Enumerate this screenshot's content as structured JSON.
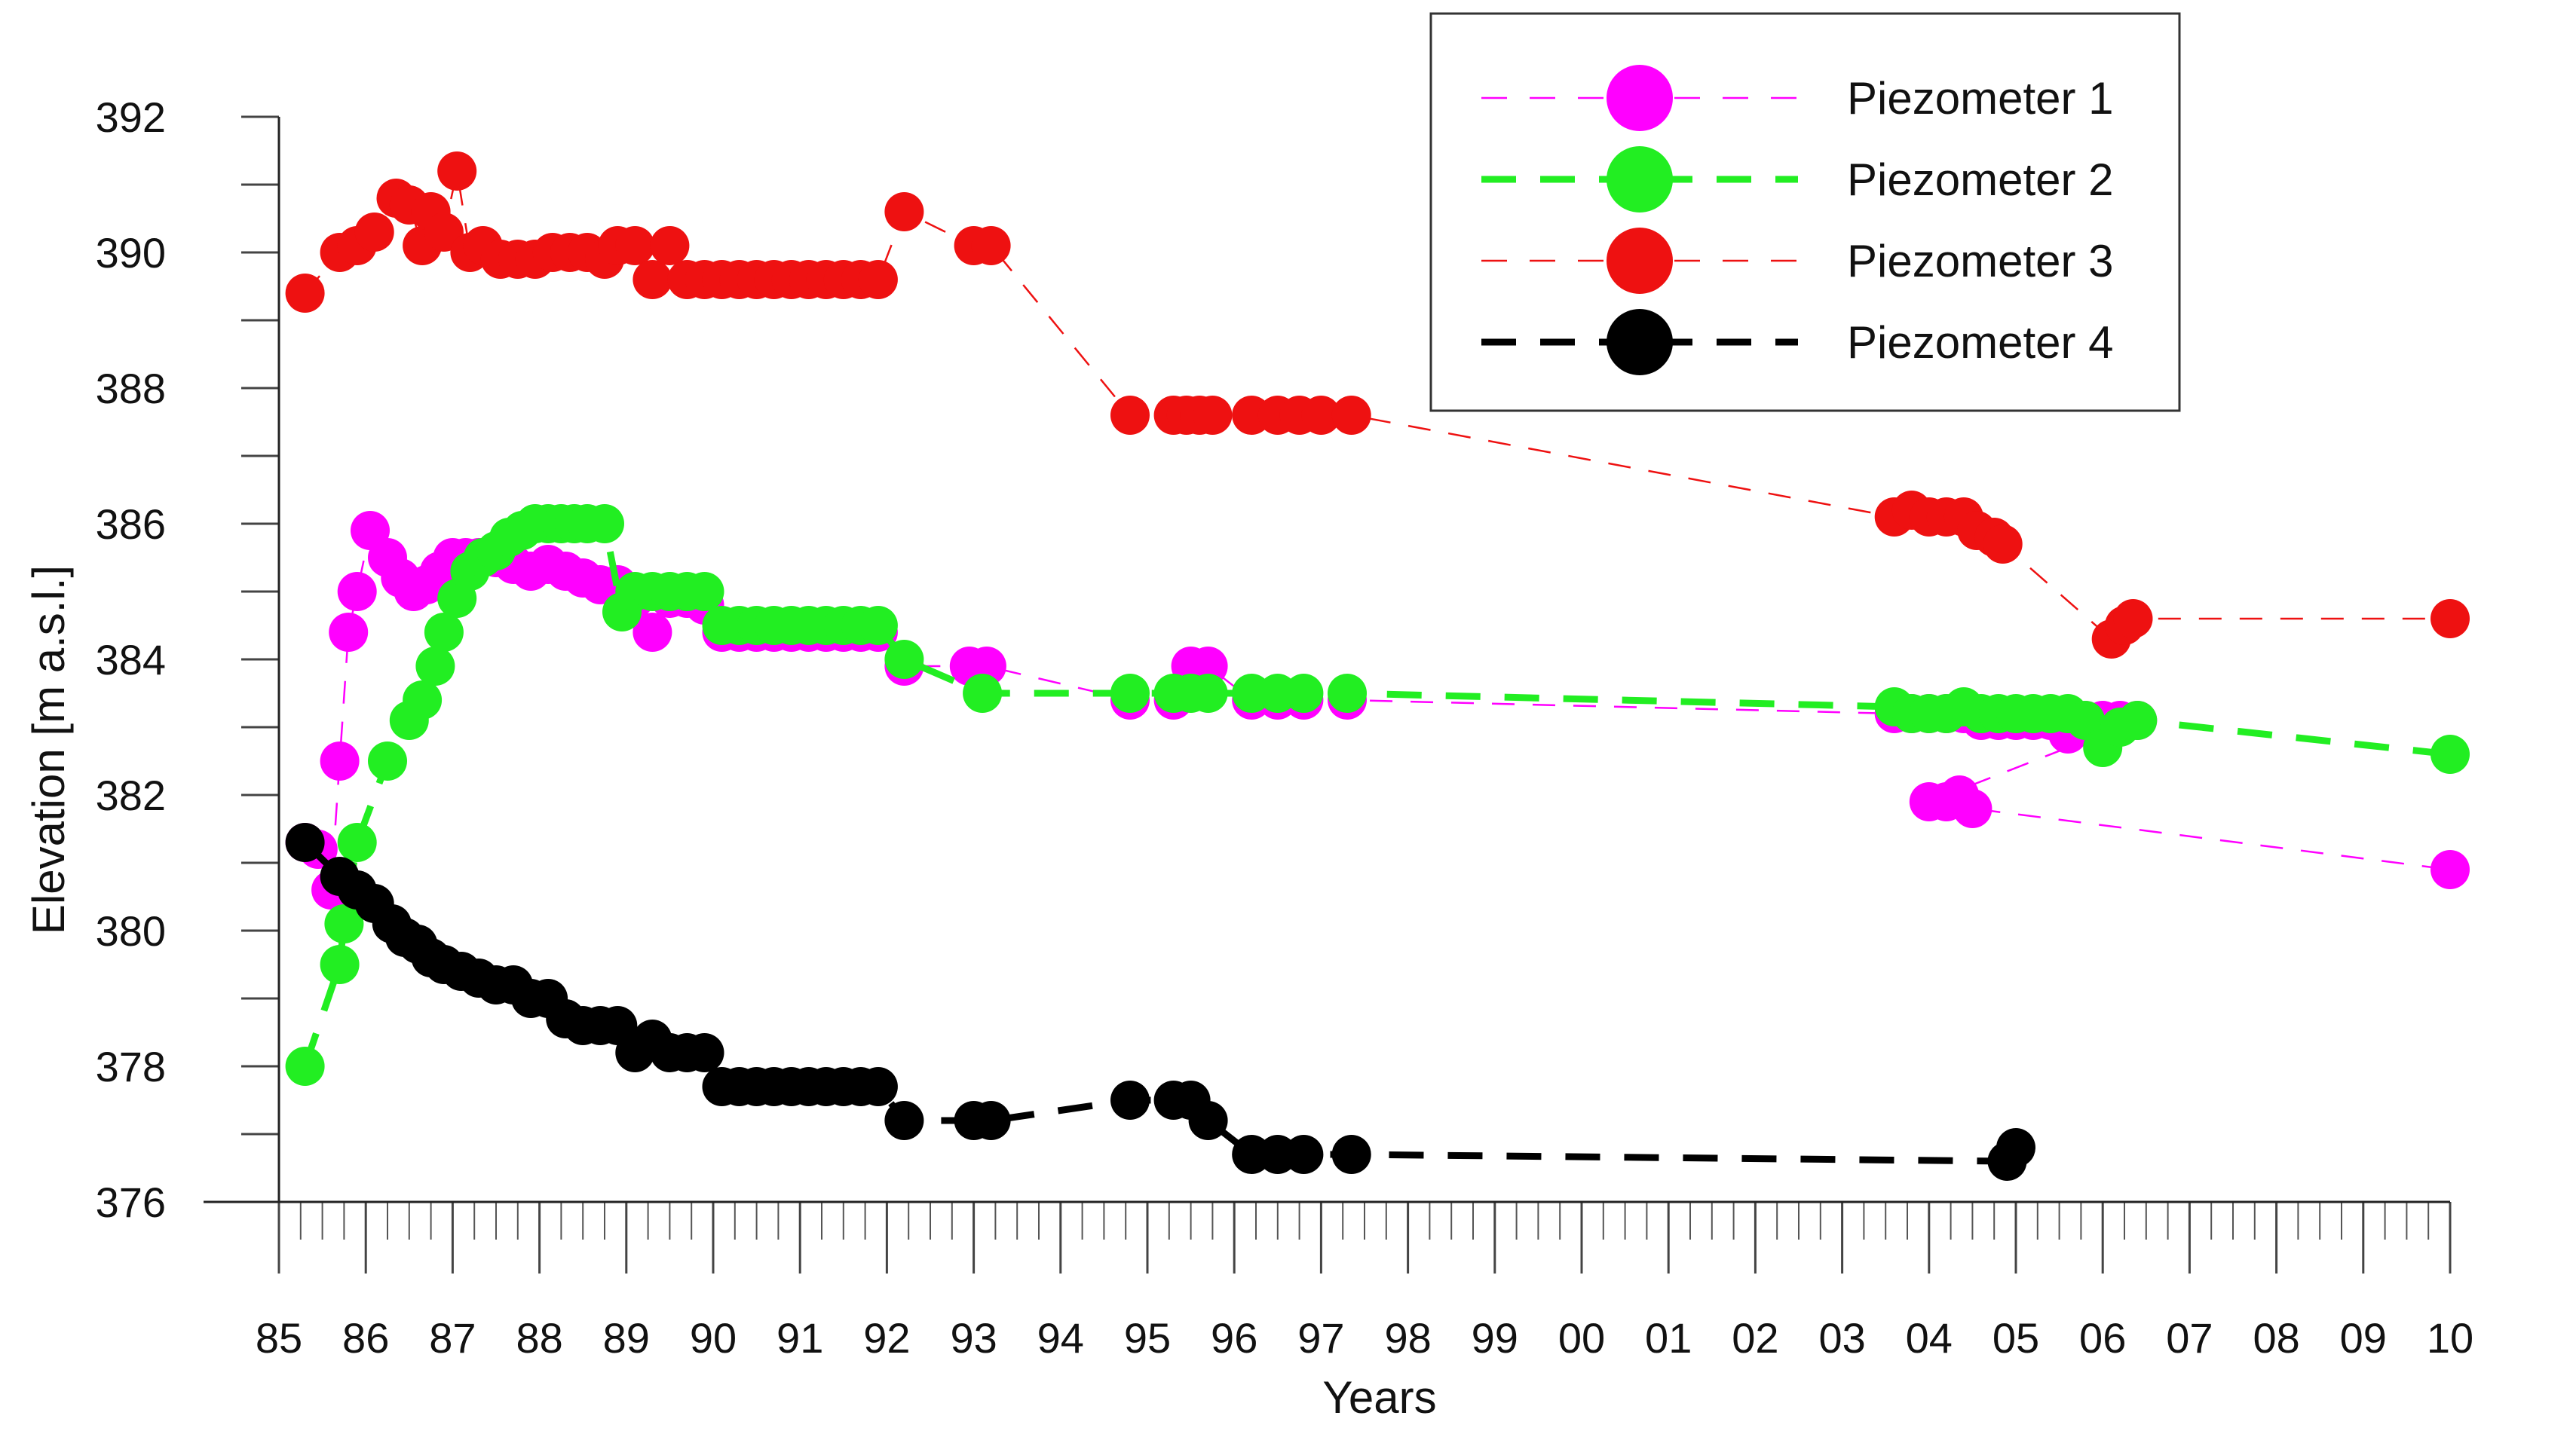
{
  "chart_data": {
    "type": "scatter",
    "title": "",
    "xlabel": "Years",
    "ylabel": "Elevation [m a.s.l.]",
    "xlim": [
      1985,
      2010
    ],
    "ylim": [
      376,
      392
    ],
    "x_tick_values": [
      1985,
      1986,
      1987,
      1988,
      1989,
      1990,
      1991,
      1992,
      1993,
      1994,
      1995,
      1996,
      1997,
      1998,
      1999,
      2000,
      2001,
      2002,
      2003,
      2004,
      2005,
      2006,
      2007,
      2008,
      2009,
      2010
    ],
    "x_tick_labels": [
      "85",
      "86",
      "87",
      "88",
      "89",
      "90",
      "91",
      "92",
      "93",
      "94",
      "95",
      "96",
      "97",
      "98",
      "99",
      "00",
      "01",
      "02",
      "03",
      "04",
      "05",
      "06",
      "07",
      "08",
      "09",
      "10"
    ],
    "y_tick_values": [
      376,
      378,
      380,
      382,
      384,
      386,
      388,
      390,
      392
    ],
    "y_tick_labels": [
      "376",
      "378",
      "380",
      "382",
      "384",
      "386",
      "388",
      "390",
      "392"
    ],
    "legend_position": "top-right",
    "series": [
      {
        "name": "Piezometer 1",
        "color": "#ff00ff",
        "line_style": "dashed-thin",
        "x": [
          1985.3,
          1985.45,
          1985.6,
          1985.7,
          1985.8,
          1985.9,
          1986.05,
          1986.25,
          1986.4,
          1986.55,
          1986.7,
          1986.85,
          1987.0,
          1987.15,
          1987.3,
          1987.5,
          1987.7,
          1987.9,
          1988.1,
          1988.3,
          1988.5,
          1988.7,
          1988.9,
          1989.1,
          1989.3,
          1989.5,
          1989.7,
          1989.9,
          1990.1,
          1990.3,
          1990.5,
          1990.7,
          1990.9,
          1991.1,
          1991.3,
          1991.5,
          1991.7,
          1991.9,
          1992.2,
          1992.95,
          1993.15,
          1994.8,
          1995.3,
          1995.5,
          1995.7,
          1996.2,
          1996.5,
          1996.8,
          1997.3,
          2003.6,
          2003.8,
          2004.0,
          2004.2,
          2004.4,
          2004.6,
          2004.8,
          2005.0,
          2005.2,
          2005.4,
          2005.6,
          2005.8,
          2006.0,
          2006.2,
          2006.4,
          2004.0,
          2004.2,
          2004.35,
          2004.5,
          2010.0
        ],
        "y": [
          381.3,
          381.2,
          380.6,
          382.5,
          384.4,
          385.0,
          385.9,
          385.5,
          385.2,
          385.0,
          385.1,
          385.3,
          385.5,
          385.5,
          385.5,
          385.5,
          385.4,
          385.3,
          385.4,
          385.3,
          385.2,
          385.1,
          385.1,
          384.9,
          384.4,
          384.9,
          384.9,
          384.8,
          384.4,
          384.4,
          384.4,
          384.4,
          384.4,
          384.4,
          384.4,
          384.4,
          384.4,
          384.4,
          383.9,
          383.9,
          383.9,
          383.4,
          383.4,
          383.9,
          383.9,
          383.4,
          383.4,
          383.4,
          383.4,
          383.2,
          383.2,
          383.2,
          383.2,
          383.2,
          383.1,
          383.1,
          383.1,
          383.1,
          383.1,
          382.9,
          383.1,
          383.1,
          383.1,
          383.1,
          381.9,
          381.9,
          382.0,
          381.8,
          380.9
        ]
      },
      {
        "name": "Piezometer 2",
        "color": "#22ee22",
        "line_style": "dashed-thick",
        "x": [
          1985.3,
          1985.7,
          1985.75,
          1985.9,
          1986.25,
          1986.5,
          1986.65,
          1986.8,
          1986.9,
          1987.05,
          1987.2,
          1987.35,
          1987.5,
          1987.65,
          1987.8,
          1987.95,
          1988.1,
          1988.25,
          1988.4,
          1988.55,
          1988.75,
          1988.95,
          1989.1,
          1989.3,
          1989.5,
          1989.7,
          1989.9,
          1990.1,
          1990.3,
          1990.5,
          1990.7,
          1990.9,
          1991.1,
          1991.3,
          1991.5,
          1991.7,
          1991.9,
          1992.2,
          1993.1,
          1994.8,
          1995.3,
          1995.5,
          1995.7,
          1996.2,
          1996.5,
          1996.8,
          1997.3,
          2003.6,
          2003.8,
          2004.0,
          2004.2,
          2004.4,
          2004.6,
          2004.8,
          2005.0,
          2005.2,
          2005.4,
          2005.6,
          2005.8,
          2006.0,
          2006.2,
          2006.4,
          2010.0
        ],
        "y": [
          378.0,
          379.5,
          380.1,
          381.3,
          382.5,
          383.1,
          383.4,
          383.9,
          384.4,
          384.9,
          385.3,
          385.5,
          385.6,
          385.8,
          385.9,
          386.0,
          386.0,
          386.0,
          386.0,
          386.0,
          386.0,
          384.7,
          385.0,
          385.0,
          385.0,
          385.0,
          385.0,
          384.5,
          384.5,
          384.5,
          384.5,
          384.5,
          384.5,
          384.5,
          384.5,
          384.5,
          384.5,
          384.0,
          383.5,
          383.5,
          383.5,
          383.5,
          383.5,
          383.5,
          383.5,
          383.5,
          383.5,
          383.3,
          383.2,
          383.2,
          383.2,
          383.3,
          383.2,
          383.2,
          383.2,
          383.2,
          383.2,
          383.2,
          383.1,
          382.7,
          383.0,
          383.1,
          382.6
        ]
      },
      {
        "name": "Piezometer 3",
        "color": "#ee1111",
        "line_style": "dashed-thin",
        "x": [
          1985.3,
          1985.7,
          1985.9,
          1986.1,
          1986.35,
          1986.5,
          1986.65,
          1986.75,
          1986.9,
          1987.05,
          1987.2,
          1987.35,
          1987.55,
          1987.75,
          1987.95,
          1988.15,
          1988.35,
          1988.55,
          1988.75,
          1988.9,
          1989.1,
          1989.3,
          1989.5,
          1989.7,
          1989.9,
          1990.1,
          1990.3,
          1990.5,
          1990.7,
          1990.9,
          1991.1,
          1991.3,
          1991.5,
          1991.7,
          1991.9,
          1992.2,
          1993.0,
          1993.2,
          1994.8,
          1995.3,
          1995.45,
          1995.6,
          1995.75,
          1996.2,
          1996.5,
          1996.75,
          1997.0,
          1997.35,
          2003.6,
          2003.8,
          2004.0,
          2004.2,
          2004.4,
          2004.55,
          2004.75,
          2004.85,
          2006.1,
          2006.25,
          2006.35,
          2010.0
        ],
        "y": [
          389.4,
          390.0,
          390.1,
          390.3,
          390.8,
          390.7,
          390.1,
          390.6,
          390.3,
          391.2,
          390.0,
          390.1,
          389.9,
          389.9,
          389.9,
          390.0,
          390.0,
          390.0,
          389.9,
          390.1,
          390.1,
          389.6,
          390.1,
          389.6,
          389.6,
          389.6,
          389.6,
          389.6,
          389.6,
          389.6,
          389.6,
          389.6,
          389.6,
          389.6,
          389.6,
          390.6,
          390.1,
          390.1,
          387.6,
          387.6,
          387.6,
          387.6,
          387.6,
          387.6,
          387.6,
          387.6,
          387.6,
          387.6,
          386.1,
          386.2,
          386.1,
          386.1,
          386.1,
          385.9,
          385.8,
          385.7,
          384.3,
          384.5,
          384.6,
          384.6
        ]
      },
      {
        "name": "Piezometer 4",
        "color": "#000000",
        "line_style": "dashed-thick",
        "x": [
          1985.3,
          1985.7,
          1985.9,
          1986.1,
          1986.3,
          1986.45,
          1986.6,
          1986.75,
          1986.9,
          1987.1,
          1987.3,
          1987.5,
          1987.7,
          1987.9,
          1988.1,
          1988.3,
          1988.5,
          1988.7,
          1988.9,
          1989.1,
          1989.3,
          1989.5,
          1989.7,
          1989.9,
          1990.1,
          1990.3,
          1990.5,
          1990.7,
          1990.9,
          1991.1,
          1991.3,
          1991.5,
          1991.7,
          1991.9,
          1992.2,
          1993.0,
          1993.2,
          1994.8,
          1995.3,
          1995.5,
          1995.7,
          1996.2,
          1996.5,
          1996.8,
          1997.35,
          2004.9,
          2005.0
        ],
        "y": [
          381.3,
          380.8,
          380.6,
          380.4,
          380.1,
          379.9,
          379.8,
          379.6,
          379.5,
          379.4,
          379.3,
          379.2,
          379.2,
          379.0,
          379.0,
          378.7,
          378.6,
          378.6,
          378.6,
          378.2,
          378.4,
          378.2,
          378.2,
          378.2,
          377.7,
          377.7,
          377.7,
          377.7,
          377.7,
          377.7,
          377.7,
          377.7,
          377.7,
          377.7,
          377.2,
          377.2,
          377.2,
          377.5,
          377.5,
          377.5,
          377.2,
          376.7,
          376.7,
          376.7,
          376.7,
          376.6,
          376.8
        ]
      }
    ]
  }
}
